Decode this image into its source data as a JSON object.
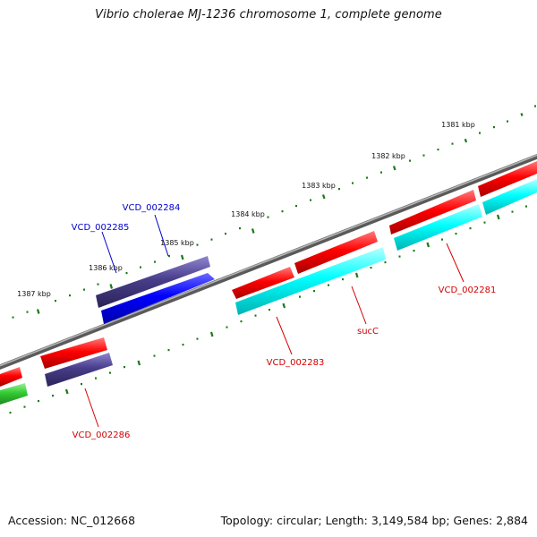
{
  "title": "Vibrio cholerae MJ-1236 chromosome 1, complete genome",
  "footer": {
    "accession": "Accession: NC_012668",
    "summary": "Topology: circular; Length: 3,149,584 bp; Genes: 2,884"
  },
  "colors": {
    "backbone": "#7f7f7f",
    "tick": "#1a7a1a",
    "cds_red": "#ff0000",
    "rna_cyan": "#00ffff",
    "cds_dark_blue": "#483d8b",
    "cds_blue": "#0000ff",
    "cds_green": "#33cc33",
    "label_red": "#d40000",
    "label_blue": "#0000cc"
  },
  "ticks": [
    {
      "label": "1381 kbp"
    },
    {
      "label": "1382 kbp"
    },
    {
      "label": "1383 kbp"
    },
    {
      "label": "1384 kbp"
    },
    {
      "label": "1385 kbp"
    },
    {
      "label": "1386 kbp"
    },
    {
      "label": "1387 kbp"
    }
  ],
  "gene_labels": [
    {
      "name": "VCD_002281",
      "color": "red"
    },
    {
      "name": "sucC",
      "color": "red"
    },
    {
      "name": "VCD_002283",
      "color": "red"
    },
    {
      "name": "VCD_002284",
      "color": "blue"
    },
    {
      "name": "VCD_002285",
      "color": "blue"
    },
    {
      "name": "VCD_002286",
      "color": "red"
    }
  ]
}
